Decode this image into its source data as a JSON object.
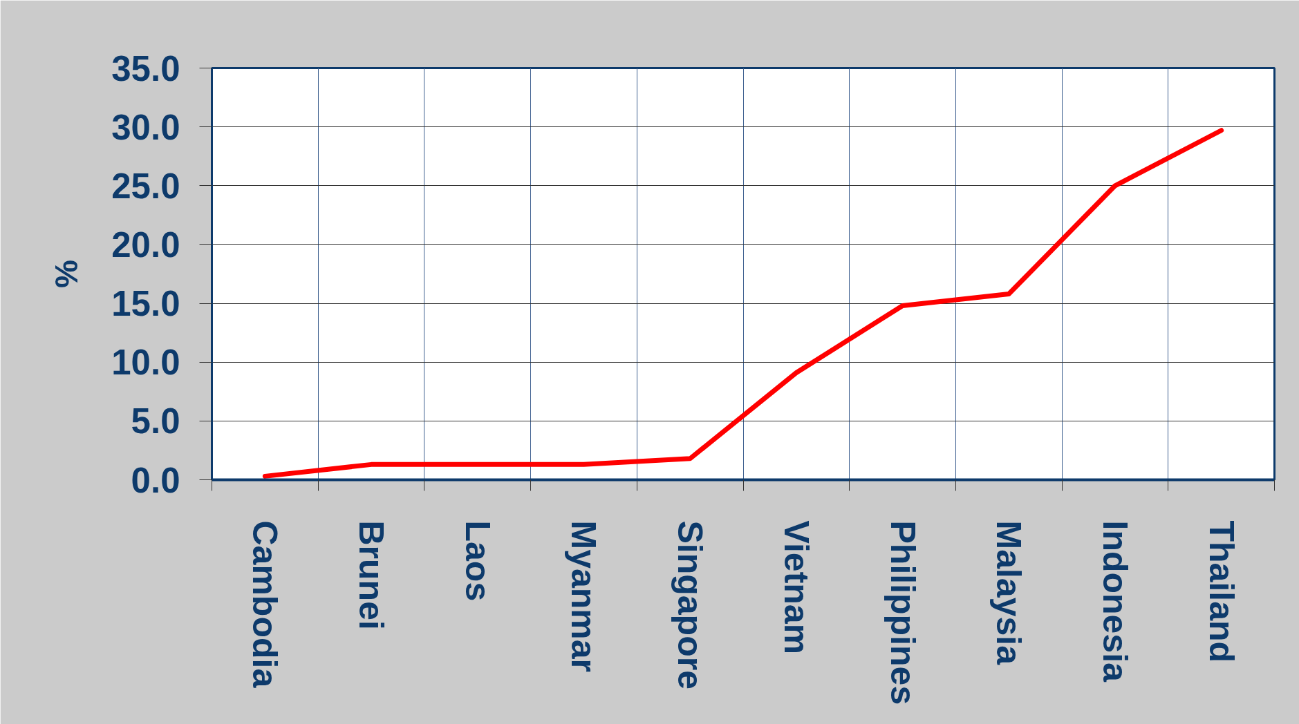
{
  "chart_data": {
    "type": "line",
    "categories": [
      "Cambodia",
      "Brunei",
      "Laos",
      "Myanmar",
      "Singapore",
      "Vietnam",
      "Philippines",
      "Malaysia",
      "Indonesia",
      "Thailand"
    ],
    "series": [
      {
        "color": "#ff0000",
        "values": [
          0.3,
          1.3,
          1.3,
          1.3,
          1.8,
          9.1,
          14.8,
          15.8,
          25.0,
          29.7
        ]
      }
    ],
    "ylabel": "%",
    "ylim": [
      0,
      35
    ],
    "yticks": [
      {
        "value": 0,
        "label": "0.0"
      },
      {
        "value": 5,
        "label": "5.0"
      },
      {
        "value": 10,
        "label": "10.0"
      },
      {
        "value": 15,
        "label": "15.0"
      },
      {
        "value": 20,
        "label": "20.0"
      },
      {
        "value": 25,
        "label": "25.0"
      },
      {
        "value": 30,
        "label": "30.0"
      },
      {
        "value": 35,
        "label": "35.0"
      }
    ],
    "grid": true,
    "line_style": "solid"
  }
}
